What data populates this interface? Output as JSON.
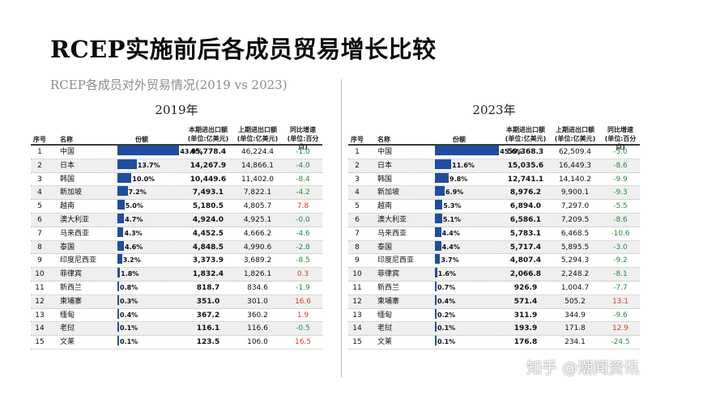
{
  "title": "RCEP实施前后各成员贸易增长比较",
  "subtitle": "RCEP各成员对外贸易情况(2019 vs 2023)",
  "watermark": "知乎 @潮闻资讯",
  "colors": {
    "bar": "#1f4ea0",
    "negative": "#2a8a3a",
    "positive": "#d4402c"
  },
  "headers": {
    "no": "序号",
    "name": "名称",
    "share": "份额",
    "cur_line1": "本期进出口额",
    "cur_line2": "(单位:亿美元)",
    "prev_line1": "上期进出口额",
    "prev_line2": "(单位:亿美元)",
    "chg_line1": "同比增速",
    "chg_line2": "(单位:百分点)"
  },
  "chart_data": [
    {
      "type": "table",
      "title": "2019年",
      "columns": [
        "序号",
        "名称",
        "份额",
        "本期进出口额(单位:亿美元)",
        "上期进出口额(单位:亿美元)",
        "同比增速(单位:百分点)"
      ],
      "rows": [
        {
          "no": "1",
          "name": "中国",
          "share": 43.9,
          "share_label": "43.9%",
          "cur": "45,778.4",
          "prev": "46,224.4",
          "chg": "-1.0"
        },
        {
          "no": "2",
          "name": "日本",
          "share": 13.7,
          "share_label": "13.7%",
          "cur": "14,267.9",
          "prev": "14,866.1",
          "chg": "-4.0"
        },
        {
          "no": "3",
          "name": "韩国",
          "share": 10.0,
          "share_label": "10.0%",
          "cur": "10,449.6",
          "prev": "11,402.0",
          "chg": "-8.4"
        },
        {
          "no": "4",
          "name": "新加坡",
          "share": 7.2,
          "share_label": "7.2%",
          "cur": "7,493.1",
          "prev": "7,822.1",
          "chg": "-4.2"
        },
        {
          "no": "5",
          "name": "越南",
          "share": 5.0,
          "share_label": "5.0%",
          "cur": "5,180.5",
          "prev": "4,805.7",
          "chg": "7.8"
        },
        {
          "no": "6",
          "name": "澳大利亚",
          "share": 4.7,
          "share_label": "4.7%",
          "cur": "4,924.0",
          "prev": "4,925.1",
          "chg": "-0.0"
        },
        {
          "no": "7",
          "name": "马来西亚",
          "share": 4.3,
          "share_label": "4.3%",
          "cur": "4,452.5",
          "prev": "4,666.2",
          "chg": "-4.6"
        },
        {
          "no": "8",
          "name": "泰国",
          "share": 4.6,
          "share_label": "4.6%",
          "cur": "4,848.5",
          "prev": "4,990.6",
          "chg": "-2.8"
        },
        {
          "no": "9",
          "name": "印度尼西亚",
          "share": 3.2,
          "share_label": "3.2%",
          "cur": "3,373.9",
          "prev": "3,689.2",
          "chg": "-8.5"
        },
        {
          "no": "10",
          "name": "菲律宾",
          "share": 1.8,
          "share_label": "1.8%",
          "cur": "1,832.4",
          "prev": "1,826.1",
          "chg": "0.3"
        },
        {
          "no": "11",
          "name": "新西兰",
          "share": 0.8,
          "share_label": "0.8%",
          "cur": "818.7",
          "prev": "834.6",
          "chg": "-1.9"
        },
        {
          "no": "12",
          "name": "柬埔寨",
          "share": 0.3,
          "share_label": "0.3%",
          "cur": "351.0",
          "prev": "301.0",
          "chg": "16.6"
        },
        {
          "no": "13",
          "name": "缅甸",
          "share": 0.4,
          "share_label": "0.4%",
          "cur": "367.2",
          "prev": "360.2",
          "chg": "1.9"
        },
        {
          "no": "14",
          "name": "老挝",
          "share": 0.1,
          "share_label": "0.1%",
          "cur": "116.1",
          "prev": "116.6",
          "chg": "-0.5"
        },
        {
          "no": "15",
          "name": "文莱",
          "share": 0.1,
          "share_label": "0.1%",
          "cur": "123.5",
          "prev": "106.0",
          "chg": "16.5"
        }
      ]
    },
    {
      "type": "table",
      "title": "2023年",
      "columns": [
        "序号",
        "名称",
        "份额",
        "本期进出口额(单位:亿美元)",
        "上期进出口额(单位:亿美元)",
        "同比增速(单位:百分点)"
      ],
      "rows": [
        {
          "no": "1",
          "name": "中国",
          "share": 45.6,
          "share_label": "45.6%",
          "cur": "59,368.3",
          "prev": "62,509.4",
          "chg": "-5.0"
        },
        {
          "no": "2",
          "name": "日本",
          "share": 11.6,
          "share_label": "11.6%",
          "cur": "15,035.6",
          "prev": "16,449.3",
          "chg": "-8.6"
        },
        {
          "no": "3",
          "name": "韩国",
          "share": 9.8,
          "share_label": "9.8%",
          "cur": "12,741.1",
          "prev": "14,140.2",
          "chg": "-9.9"
        },
        {
          "no": "4",
          "name": "新加坡",
          "share": 6.9,
          "share_label": "6.9%",
          "cur": "8,976.2",
          "prev": "9,900.1",
          "chg": "-9.3"
        },
        {
          "no": "5",
          "name": "越南",
          "share": 5.3,
          "share_label": "5.3%",
          "cur": "6,894.0",
          "prev": "7,297.0",
          "chg": "-5.5"
        },
        {
          "no": "6",
          "name": "澳大利亚",
          "share": 5.1,
          "share_label": "5.1%",
          "cur": "6,586.1",
          "prev": "7,209.5",
          "chg": "-8.6"
        },
        {
          "no": "7",
          "name": "马来西亚",
          "share": 4.4,
          "share_label": "4.4%",
          "cur": "5,783.1",
          "prev": "6,468.5",
          "chg": "-10.6"
        },
        {
          "no": "8",
          "name": "泰国",
          "share": 4.4,
          "share_label": "4.4%",
          "cur": "5,717.4",
          "prev": "5,895.5",
          "chg": "-3.0"
        },
        {
          "no": "9",
          "name": "印度尼西亚",
          "share": 3.7,
          "share_label": "3.7%",
          "cur": "4,807.4",
          "prev": "5,294.3",
          "chg": "-9.2"
        },
        {
          "no": "10",
          "name": "菲律宾",
          "share": 1.6,
          "share_label": "1.6%",
          "cur": "2,066.8",
          "prev": "2,248.2",
          "chg": "-8.1"
        },
        {
          "no": "11",
          "name": "新西兰",
          "share": 0.7,
          "share_label": "0.7%",
          "cur": "926.9",
          "prev": "1,004.7",
          "chg": "-7.7"
        },
        {
          "no": "12",
          "name": "柬埔寨",
          "share": 0.4,
          "share_label": "0.4%",
          "cur": "571.4",
          "prev": "505.2",
          "chg": "13.1"
        },
        {
          "no": "13",
          "name": "缅甸",
          "share": 0.2,
          "share_label": "0.2%",
          "cur": "311.9",
          "prev": "344.9",
          "chg": "-9.6"
        },
        {
          "no": "14",
          "name": "老挝",
          "share": 0.1,
          "share_label": "0.1%",
          "cur": "193.9",
          "prev": "171.8",
          "chg": "12.9"
        },
        {
          "no": "15",
          "name": "文莱",
          "share": 0.1,
          "share_label": "0.1%",
          "cur": "176.8",
          "prev": "234.1",
          "chg": "-24.5"
        }
      ]
    }
  ]
}
